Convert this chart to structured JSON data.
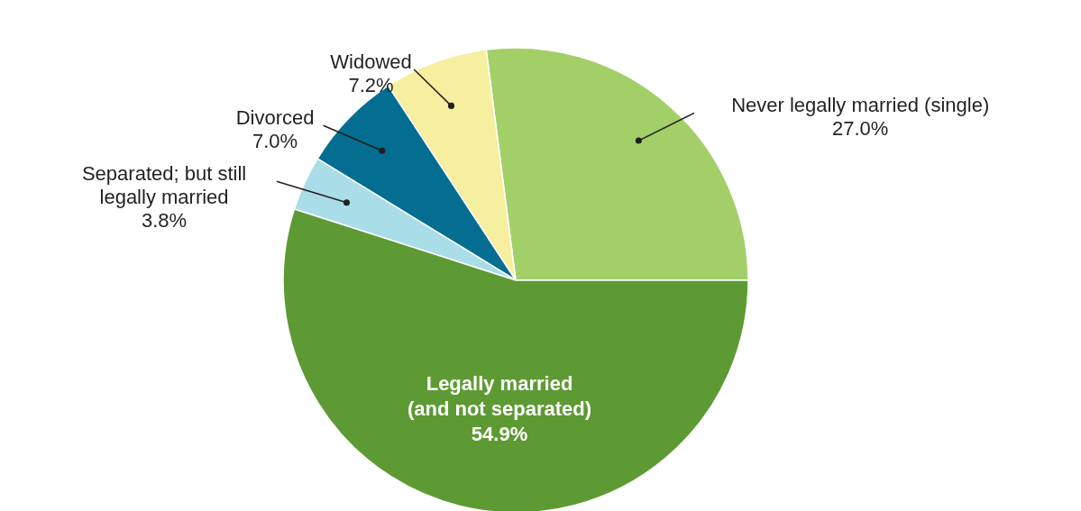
{
  "chart_data": {
    "type": "pie",
    "categories": [
      "Never legally married (single)",
      "Widowed",
      "Divorced",
      "Separated; but still legally married",
      "Legally married (and not separated)"
    ],
    "values": [
      27.0,
      7.2,
      7.0,
      3.8,
      54.9
    ],
    "value_labels": [
      "27.0%",
      "7.2%",
      "7.0%",
      "3.8%",
      "54.9%"
    ],
    "colors": [
      "#a3cf69",
      "#f5ef9f",
      "#036e91",
      "#a9dde8",
      "#5e9a33"
    ]
  }
}
